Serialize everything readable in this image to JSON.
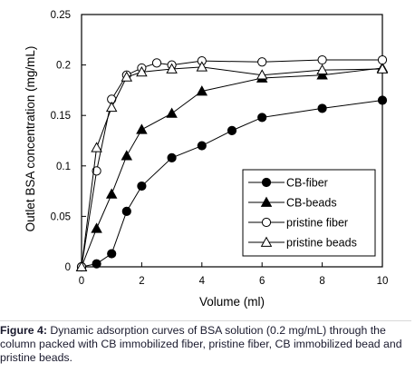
{
  "chart_data": {
    "type": "line",
    "xlabel": "Volume (ml)",
    "ylabel": "Outlet BSA concentration (mg/mL)",
    "xlim": [
      0,
      10
    ],
    "ylim": [
      0,
      0.25
    ],
    "x_ticks": [
      "0",
      "2",
      "4",
      "6",
      "8",
      "10"
    ],
    "y_ticks": [
      "0",
      "0.05",
      "0.1",
      "0.15",
      "0.2",
      "0.25"
    ],
    "grid": false,
    "legend_position": "lower-right",
    "series": [
      {
        "name": "CB-fiber",
        "marker": "filled-circle",
        "x": [
          0,
          0.5,
          1,
          1.5,
          2,
          3,
          4,
          5,
          6,
          8,
          10
        ],
        "y": [
          0,
          0.003,
          0.013,
          0.055,
          0.08,
          0.108,
          0.12,
          0.135,
          0.148,
          0.157,
          0.165
        ]
      },
      {
        "name": "CB-beads",
        "marker": "filled-triangle",
        "x": [
          0,
          0.5,
          1,
          1.5,
          2,
          3,
          4,
          6,
          8,
          10
        ],
        "y": [
          0,
          0.038,
          0.072,
          0.11,
          0.136,
          0.152,
          0.174,
          0.187,
          0.19,
          0.197
        ]
      },
      {
        "name": "pristine fiber",
        "marker": "open-circle",
        "x": [
          0,
          0.5,
          1,
          1.5,
          2,
          2.5,
          3,
          4,
          6,
          8,
          10
        ],
        "y": [
          0,
          0.095,
          0.166,
          0.19,
          0.197,
          0.202,
          0.2,
          0.204,
          0.203,
          0.205,
          0.205
        ]
      },
      {
        "name": "pristine beads",
        "marker": "open-triangle",
        "x": [
          0,
          0.5,
          1,
          1.5,
          2,
          3,
          4,
          6,
          8,
          10
        ],
        "y": [
          0,
          0.118,
          0.158,
          0.188,
          0.193,
          0.196,
          0.198,
          0.19,
          0.195,
          0.196
        ]
      }
    ]
  },
  "caption": {
    "label": "Figure 4:",
    "text": " Dynamic adsorption curves of BSA solution (0.2 mg/mL) through the column packed with CB immobilized fiber, pristine fiber, CB immobilized bead and pristine beads."
  }
}
